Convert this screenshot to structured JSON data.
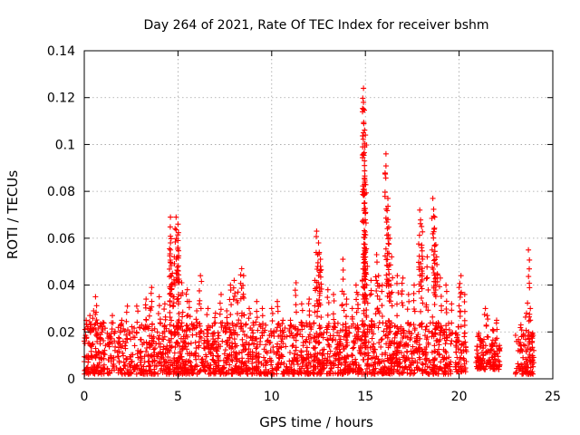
{
  "chart_data": {
    "type": "scatter",
    "title": "Day 264 of 2021, Rate Of TEC Index for receiver bshm",
    "xlabel": "GPS time / hours",
    "ylabel": "ROTI / TECUs",
    "xlim": [
      0,
      25
    ],
    "ylim": [
      0,
      0.14
    ],
    "xticks": [
      "0",
      "5",
      "10",
      "15",
      "20",
      "25"
    ],
    "yticks": [
      "0",
      "0.02",
      "0.04",
      "0.06",
      "0.08",
      "0.1",
      "0.12",
      "0.14"
    ],
    "xtick_values": [
      0,
      5,
      10,
      15,
      20,
      25
    ],
    "ytick_values": [
      0,
      0.02,
      0.04,
      0.06,
      0.07999999999999999,
      0.1,
      0.12,
      0.14
    ],
    "grid": true,
    "marker": "+",
    "color": "#ff0000",
    "series": [
      {
        "values_description_points": [
          [
            0.1,
            0.025
          ],
          [
            0.3,
            0.027
          ],
          [
            0.5,
            0.029
          ],
          [
            0.6,
            0.035
          ],
          [
            1.0,
            0.024
          ],
          [
            1.5,
            0.027
          ],
          [
            2.0,
            0.025
          ],
          [
            2.3,
            0.031
          ],
          [
            2.8,
            0.031
          ],
          [
            3.3,
            0.034
          ],
          [
            3.5,
            0.03
          ],
          [
            3.6,
            0.039
          ],
          [
            4.0,
            0.035
          ],
          [
            4.3,
            0.032
          ],
          [
            4.6,
            0.069
          ],
          [
            4.6,
            0.058
          ],
          [
            4.6,
            0.055
          ],
          [
            4.7,
            0.045
          ],
          [
            4.8,
            0.052
          ],
          [
            4.9,
            0.069
          ],
          [
            5.0,
            0.059
          ],
          [
            5.0,
            0.066
          ],
          [
            5.0,
            0.046
          ],
          [
            5.2,
            0.041
          ],
          [
            5.5,
            0.038
          ],
          [
            5.6,
            0.033
          ],
          [
            6.0,
            0.029
          ],
          [
            6.2,
            0.044
          ],
          [
            6.6,
            0.03
          ],
          [
            7.0,
            0.028
          ],
          [
            7.3,
            0.036
          ],
          [
            7.6,
            0.029
          ],
          [
            7.8,
            0.04
          ],
          [
            8.0,
            0.042
          ],
          [
            8.2,
            0.037
          ],
          [
            8.4,
            0.047
          ],
          [
            8.5,
            0.044
          ],
          [
            8.8,
            0.03
          ],
          [
            9.2,
            0.033
          ],
          [
            9.5,
            0.03
          ],
          [
            10.0,
            0.03
          ],
          [
            10.3,
            0.033
          ],
          [
            10.6,
            0.025
          ],
          [
            11.0,
            0.025
          ],
          [
            11.3,
            0.041
          ],
          [
            11.6,
            0.032
          ],
          [
            12.0,
            0.034
          ],
          [
            12.3,
            0.042
          ],
          [
            12.4,
            0.063
          ],
          [
            12.5,
            0.058
          ],
          [
            12.6,
            0.048
          ],
          [
            12.6,
            0.051
          ],
          [
            13.0,
            0.038
          ],
          [
            13.3,
            0.036
          ],
          [
            13.8,
            0.051
          ],
          [
            14.0,
            0.034
          ],
          [
            14.3,
            0.03
          ],
          [
            14.5,
            0.04
          ],
          [
            14.6,
            0.036
          ],
          [
            14.9,
            0.124
          ],
          [
            14.9,
            0.118
          ],
          [
            15.0,
            0.104
          ],
          [
            14.95,
            0.091
          ],
          [
            14.95,
            0.083
          ],
          [
            15.0,
            0.071
          ],
          [
            15.0,
            0.054
          ],
          [
            15.1,
            0.048
          ],
          [
            15.3,
            0.042
          ],
          [
            15.6,
            0.053
          ],
          [
            15.7,
            0.044
          ],
          [
            15.9,
            0.04
          ],
          [
            16.1,
            0.096
          ],
          [
            16.2,
            0.077
          ],
          [
            16.2,
            0.068
          ],
          [
            16.3,
            0.06
          ],
          [
            16.4,
            0.052
          ],
          [
            16.7,
            0.044
          ],
          [
            17.0,
            0.043
          ],
          [
            17.3,
            0.036
          ],
          [
            17.6,
            0.04
          ],
          [
            17.9,
            0.072
          ],
          [
            18.0,
            0.065
          ],
          [
            18.0,
            0.056
          ],
          [
            18.3,
            0.052
          ],
          [
            18.6,
            0.077
          ],
          [
            18.7,
            0.069
          ],
          [
            18.7,
            0.057
          ],
          [
            18.8,
            0.052
          ],
          [
            19.0,
            0.043
          ],
          [
            19.3,
            0.04
          ],
          [
            19.6,
            0.032
          ],
          [
            20.0,
            0.039
          ],
          [
            20.1,
            0.044
          ],
          [
            20.3,
            0.036
          ],
          [
            21.0,
            0.018
          ],
          [
            21.4,
            0.03
          ],
          [
            21.5,
            0.027
          ],
          [
            21.8,
            0.021
          ],
          [
            22.0,
            0.025
          ],
          [
            23.3,
            0.023
          ],
          [
            23.6,
            0.028
          ],
          [
            23.7,
            0.055
          ],
          [
            23.8,
            0.03
          ],
          [
            23.9,
            0.018
          ]
        ],
        "bands": [
          {
            "x": [
              0.0,
              19.6
            ],
            "y": [
              0.002,
              0.024
            ]
          },
          {
            "x": [
              19.8,
              20.4
            ],
            "y": [
              0.003,
              0.02
            ]
          },
          {
            "x": [
              20.9,
              22.2
            ],
            "y": [
              0.004,
              0.018
            ]
          },
          {
            "x": [
              23.0,
              24.0
            ],
            "y": [
              0.002,
              0.02
            ]
          }
        ]
      }
    ]
  }
}
